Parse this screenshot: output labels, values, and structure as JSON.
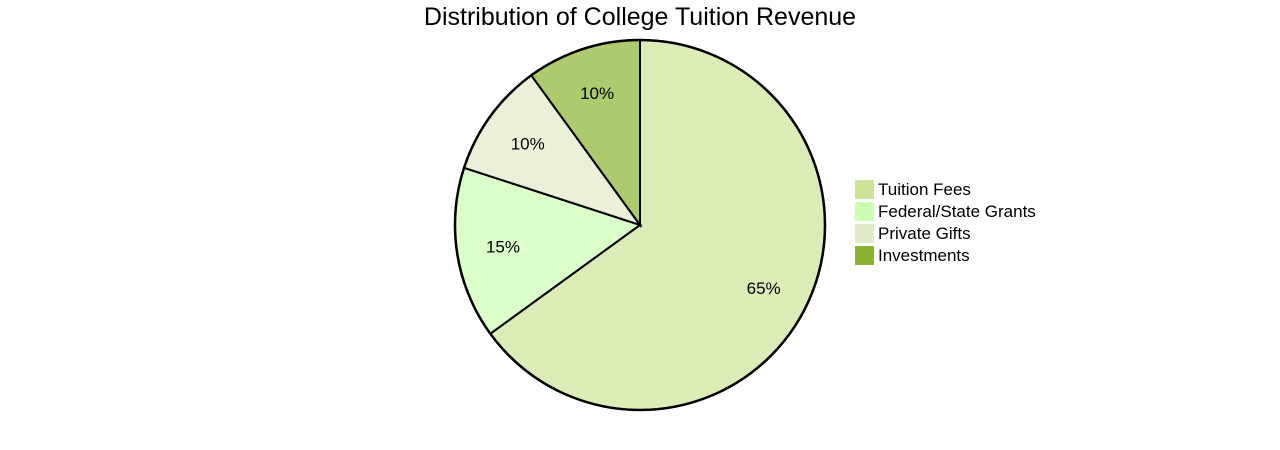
{
  "chart_data": {
    "type": "pie",
    "title": "Distribution of College Tuition Revenue",
    "categories": [
      "Tuition Fees",
      "Federal/State Grants",
      "Private Gifts",
      "Investments"
    ],
    "values": [
      65,
      15,
      10,
      10
    ],
    "labels": [
      "65%",
      "15%",
      "10%",
      "10%"
    ],
    "colors": [
      "#cde498",
      "#cdffb2",
      "#e2ebc8",
      "#8ab332"
    ],
    "legend_position": "right"
  }
}
